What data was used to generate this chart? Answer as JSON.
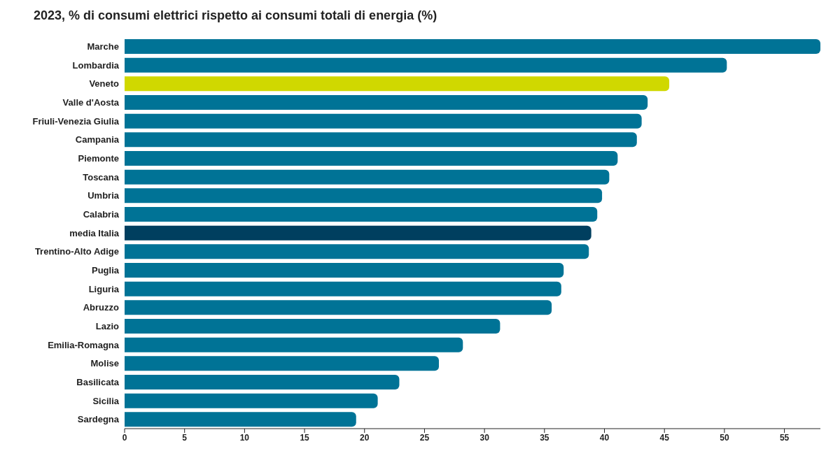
{
  "chart_data": {
    "type": "bar",
    "orientation": "horizontal",
    "title": "2023, % di consumi elettrici rispetto ai consumi totali di energia (%)",
    "categories": [
      "Marche",
      "Lombardia",
      "Veneto",
      "Valle d'Aosta",
      "Friuli-Venezia Giulia",
      "Campania",
      "Piemonte",
      "Toscana",
      "Umbria",
      "Calabria",
      "media Italia",
      "Trentino-Alto Adige",
      "Puglia",
      "Liguria",
      "Abruzzo",
      "Lazio",
      "Emilia-Romagna",
      "Molise",
      "Basilicata",
      "Sicilia",
      "Sardegna"
    ],
    "values": [
      58,
      50.2,
      45.4,
      43.6,
      43.1,
      42.7,
      41.1,
      40.4,
      39.8,
      39.4,
      38.9,
      38.7,
      36.6,
      36.4,
      35.6,
      31.3,
      28.2,
      26.2,
      22.9,
      21.1,
      19.3
    ],
    "colors": [
      "#007396",
      "#007396",
      "#d0d800",
      "#007396",
      "#007396",
      "#007396",
      "#007396",
      "#007396",
      "#007396",
      "#007396",
      "#003f5f",
      "#007396",
      "#007396",
      "#007396",
      "#007396",
      "#007396",
      "#007396",
      "#007396",
      "#007396",
      "#007396",
      "#007396"
    ],
    "xlim": [
      0,
      58
    ],
    "xticks": [
      0,
      5,
      10,
      15,
      20,
      25,
      30,
      35,
      40,
      45,
      50,
      55
    ],
    "grid": false,
    "legend": false
  }
}
